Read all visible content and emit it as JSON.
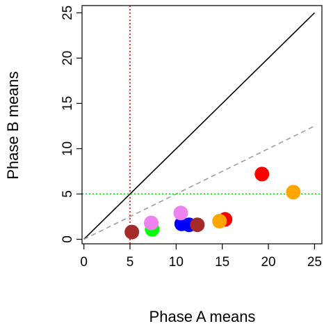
{
  "chart_data": {
    "type": "scatter",
    "xlabel": "Phase A means",
    "ylabel": "Phase B means",
    "xlim": [
      -0.2,
      25.8
    ],
    "ylim": [
      -0.5,
      25.8
    ],
    "xticks": [
      0,
      5,
      10,
      15,
      20,
      25
    ],
    "yticks": [
      0,
      5,
      10,
      15,
      20,
      25
    ],
    "points": [
      {
        "x": 5.2,
        "y": 0.8,
        "color": "#a52a2a"
      },
      {
        "x": 7.4,
        "y": 1.1,
        "color": "#00ff00"
      },
      {
        "x": 7.3,
        "y": 1.8,
        "color": "#ee82ee"
      },
      {
        "x": 10.6,
        "y": 1.7,
        "color": "#0000ff"
      },
      {
        "x": 11.4,
        "y": 1.6,
        "color": "#0000ff"
      },
      {
        "x": 10.5,
        "y": 2.9,
        "color": "#ee82ee"
      },
      {
        "x": 12.3,
        "y": 1.6,
        "color": "#a52a2a"
      },
      {
        "x": 15.3,
        "y": 2.2,
        "color": "#ff0000"
      },
      {
        "x": 14.7,
        "y": 2.0,
        "color": "#ffa500"
      },
      {
        "x": 19.3,
        "y": 7.2,
        "color": "#ff0000"
      },
      {
        "x": 22.7,
        "y": 5.2,
        "color": "#ffa500"
      }
    ],
    "reference_lines": [
      {
        "kind": "identity",
        "slope": 1,
        "x_range": [
          0,
          25
        ],
        "style": "solid",
        "color": "#000000"
      },
      {
        "kind": "half",
        "slope": 0.5,
        "x_range": [
          0,
          25
        ],
        "style": "dashed",
        "color": "#9e9e9e"
      },
      {
        "kind": "vertical",
        "x": 5,
        "style": "dotted",
        "color": "#ff0000"
      },
      {
        "kind": "horizontal",
        "y": 5,
        "style": "dotted",
        "color": "#00dd00"
      }
    ]
  }
}
